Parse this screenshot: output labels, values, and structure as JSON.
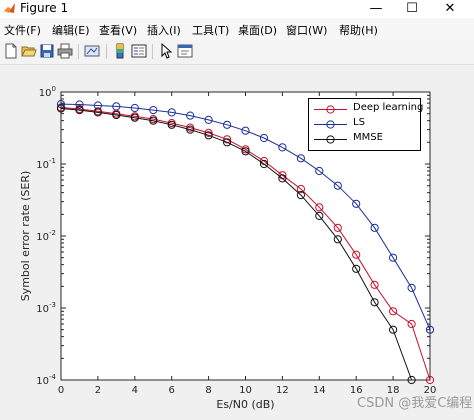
{
  "window": {
    "title": "Figure 1",
    "controls": {
      "minimize": "—",
      "maximize": "☐",
      "close": "✕"
    }
  },
  "menubar": {
    "items": [
      "文件(F)",
      "编辑(E)",
      "查看(V)",
      "插入(I)",
      "工具(T)",
      "桌面(D)",
      "窗口(W)",
      "帮助(H)"
    ]
  },
  "toolbar": {
    "icons": [
      "new-figure-icon",
      "open-file-icon",
      "save-icon",
      "print-icon",
      "link-plot-icon",
      "colorbar-icon",
      "legend-icon",
      "pointer-icon",
      "property-editor-icon"
    ]
  },
  "watermark": "CSDN @我爱C编程",
  "chart_data": {
    "type": "line",
    "title": "",
    "xlabel": "Es/N0 (dB)",
    "ylabel": "Symbol error rate (SER)",
    "xlim": [
      0,
      20
    ],
    "ylim": [
      0.0001,
      1
    ],
    "yscale": "log",
    "grid": false,
    "legend_position": "top-right",
    "x": [
      0,
      1,
      2,
      3,
      4,
      5,
      6,
      7,
      8,
      9,
      10,
      11,
      12,
      13,
      14,
      15,
      16,
      17,
      18,
      19,
      20
    ],
    "xticks": [
      "0",
      "2",
      "4",
      "6",
      "8",
      "10",
      "12",
      "14",
      "16",
      "18",
      "20"
    ],
    "yticks": [
      "10^-4",
      "10^-3",
      "10^-2",
      "10^-1",
      "10^0"
    ],
    "series": [
      {
        "name": "Deep learning",
        "color": "#c8102e",
        "values": [
          0.61,
          0.58,
          0.54,
          0.5,
          0.46,
          0.42,
          0.37,
          0.32,
          0.27,
          0.22,
          0.16,
          0.11,
          0.07,
          0.045,
          0.025,
          0.013,
          0.0055,
          0.0021,
          0.0009,
          0.0006,
          0.0001
        ]
      },
      {
        "name": "LS",
        "color": "#1c2f9a",
        "values": [
          0.68,
          0.67,
          0.65,
          0.63,
          0.6,
          0.56,
          0.52,
          0.47,
          0.41,
          0.35,
          0.29,
          0.23,
          0.17,
          0.12,
          0.08,
          0.05,
          0.028,
          0.013,
          0.005,
          0.0019,
          0.0005
        ]
      },
      {
        "name": "MMSE",
        "color": "#111111",
        "values": [
          0.59,
          0.56,
          0.52,
          0.48,
          0.44,
          0.4,
          0.35,
          0.3,
          0.25,
          0.2,
          0.15,
          0.1,
          0.063,
          0.037,
          0.019,
          0.009,
          0.0035,
          0.0012,
          0.0005,
          0.0001,
          null
        ]
      }
    ]
  }
}
